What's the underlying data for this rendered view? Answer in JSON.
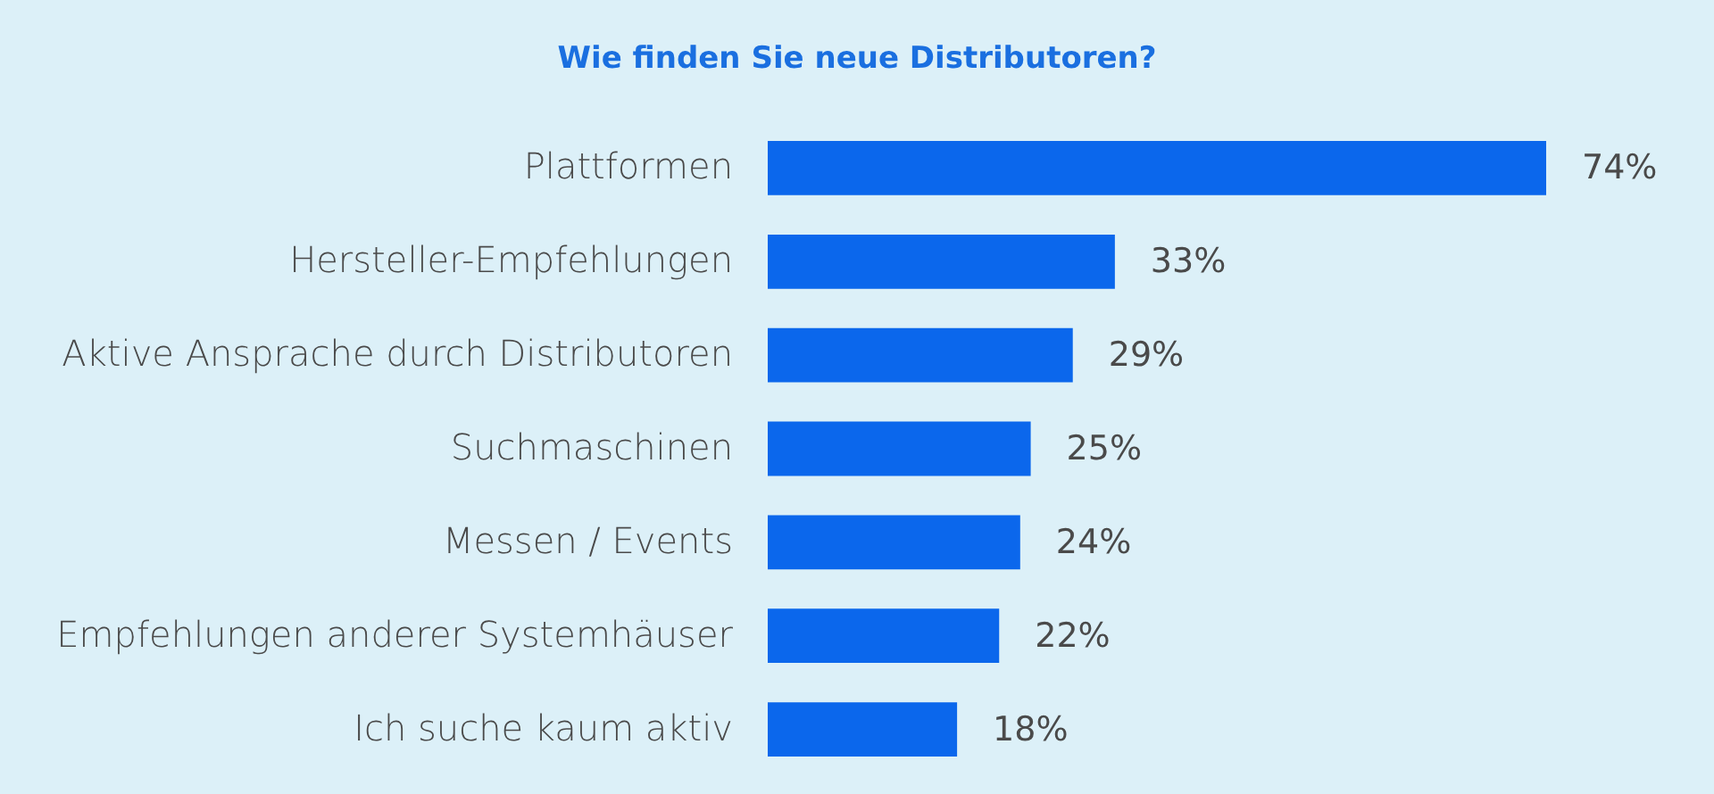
{
  "chart_data": {
    "type": "bar",
    "orientation": "horizontal",
    "title": "Wie finden Sie neue Distributoren?",
    "categories": [
      "Plattformen",
      "Hersteller-Empfehlungen",
      "Aktive Ansprache durch Distributoren",
      "Suchmaschinen",
      "Messen / Events",
      "Empfehlungen anderer Systemhäuser",
      "Ich suche kaum aktiv"
    ],
    "values": [
      74,
      33,
      29,
      25,
      24,
      22,
      18
    ],
    "value_labels": [
      "74%",
      "33%",
      "29%",
      "25%",
      "24%",
      "22%",
      "18%"
    ],
    "color": "#0b67ec"
  }
}
